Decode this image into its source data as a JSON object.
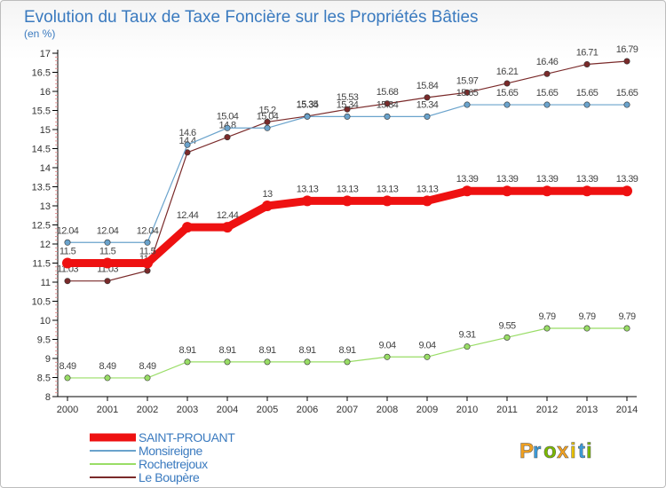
{
  "chart_data": {
    "type": "line",
    "title": "Evolution du Taux de Taxe Foncière sur les Propriétés Bâties",
    "ylabel": "(en %)",
    "xlabel": "",
    "ylim": [
      8,
      17
    ],
    "yticks": [
      "8",
      "8.5",
      "9",
      "9.5",
      "10",
      "10.5",
      "11",
      "11.5",
      "12",
      "12.5",
      "13",
      "13.5",
      "14",
      "14.5",
      "15",
      "15.5",
      "16",
      "16.5",
      "17"
    ],
    "categories": [
      "2000",
      "2001",
      "2002",
      "2003",
      "2004",
      "2005",
      "2006",
      "2007",
      "2008",
      "2009",
      "2010",
      "2011",
      "2012",
      "2013",
      "2014"
    ],
    "grid": false,
    "legend_position": "bottom-left",
    "series": [
      {
        "name": "Le Boupère",
        "color": "#7a2a2a",
        "values": [
          11.03,
          11.03,
          11.3,
          14.4,
          14.8,
          15.2,
          15.35,
          15.53,
          15.68,
          15.84,
          15.97,
          16.21,
          16.46,
          16.71,
          16.79
        ],
        "labels": [
          "11.03",
          "11.03",
          "11.3",
          "14.4",
          "14.8",
          "15.2",
          "15.35",
          "15.53",
          "15.68",
          "15.84",
          "15.97",
          "16.21",
          "16.46",
          "16.71",
          "16.79"
        ]
      },
      {
        "name": "Monsireigne",
        "color": "#6aa3cc",
        "values": [
          12.04,
          12.04,
          12.04,
          14.6,
          15.04,
          15.04,
          15.34,
          15.34,
          15.34,
          15.34,
          15.65,
          15.65,
          15.65,
          15.65,
          15.65
        ],
        "labels": [
          "12.04",
          "12.04",
          "12.04",
          "14.6",
          "15.04",
          "15.04",
          "15.34",
          "15.34",
          "15.34",
          "15.34",
          "15.65",
          "15.65",
          "15.65",
          "15.65",
          "15.65"
        ]
      },
      {
        "name": "Rochetrejoux",
        "color": "#99dd66",
        "values": [
          8.49,
          8.49,
          8.49,
          8.91,
          8.91,
          8.91,
          8.91,
          8.91,
          9.04,
          9.04,
          9.31,
          9.55,
          9.79,
          9.79,
          9.79
        ],
        "labels": [
          "8.49",
          "8.49",
          "8.49",
          "8.91",
          "8.91",
          "8.91",
          "8.91",
          "8.91",
          "9.04",
          "9.04",
          "9.31",
          "9.55",
          "9.79",
          "9.79",
          "9.79"
        ]
      },
      {
        "name": "SAINT-PROUANT",
        "color": "#ee1111",
        "values": [
          11.5,
          11.5,
          11.5,
          12.44,
          12.44,
          13.0,
          13.13,
          13.13,
          13.13,
          13.13,
          13.39,
          13.39,
          13.39,
          13.39,
          13.39
        ],
        "labels": [
          "11.5",
          "11.5",
          "11.5",
          "12.44",
          "12.44",
          "13",
          "13.13",
          "13.13",
          "13.13",
          "13.13",
          "13.39",
          "13.39",
          "13.39",
          "13.39",
          "13.39"
        ]
      }
    ],
    "legend": [
      "SAINT-PROUANT",
      "Monsireigne",
      "Rochetrejoux",
      "Le Boupère"
    ]
  },
  "brand": {
    "letters": [
      "P",
      "r",
      "o",
      "x",
      "i",
      "t",
      "i"
    ],
    "colors": [
      "#f0a020",
      "#3a9ad9",
      "#7ab800",
      "#f0a020",
      "#e8c000",
      "#3a9ad9",
      "#7ab800"
    ]
  }
}
